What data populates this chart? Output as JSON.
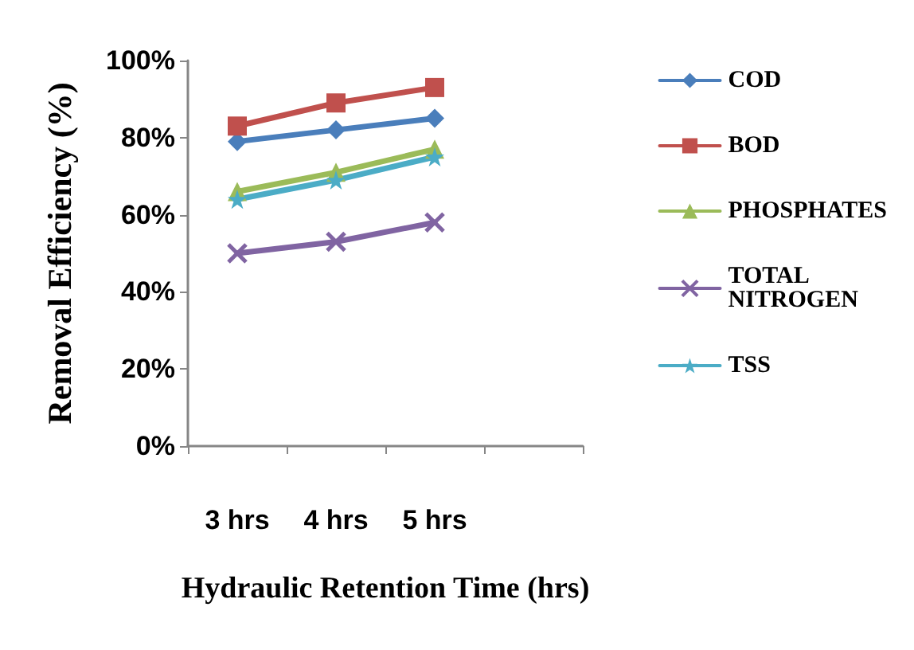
{
  "chart_data": {
    "type": "line",
    "xlabel": "Hydraulic Retention Time (hrs)",
    "ylabel": "Removal Efficiency (%)",
    "categories": [
      "3 hrs",
      "4 hrs",
      "5 hrs",
      null
    ],
    "series": [
      {
        "name": "COD",
        "color": "#4a7ebb",
        "marker": "diamond",
        "values": [
          79,
          82,
          85,
          null
        ]
      },
      {
        "name": "BOD",
        "color": "#c0504d",
        "marker": "square",
        "values": [
          83,
          89,
          93,
          null
        ]
      },
      {
        "name": "PHOSPHATES",
        "color": "#9bbb59",
        "marker": "triangle",
        "values": [
          66,
          71,
          77,
          null
        ]
      },
      {
        "name": "TOTAL NITROGEN",
        "color": "#8064a2",
        "marker": "cross",
        "values": [
          50,
          53,
          58,
          null
        ]
      },
      {
        "name": "TSS",
        "color": "#4bacc6",
        "marker": "star",
        "values": [
          64,
          69,
          75,
          null
        ]
      }
    ],
    "ylim": [
      0,
      100
    ],
    "yticks": [
      {
        "value": 0,
        "label": "0%"
      },
      {
        "value": 20,
        "label": "20%"
      },
      {
        "value": 40,
        "label": "40%"
      },
      {
        "value": 60,
        "label": "60%"
      },
      {
        "value": 80,
        "label": "80%"
      },
      {
        "value": 100,
        "label": "100%"
      }
    ],
    "grid": false,
    "legend": "right",
    "line_style": "solid"
  }
}
